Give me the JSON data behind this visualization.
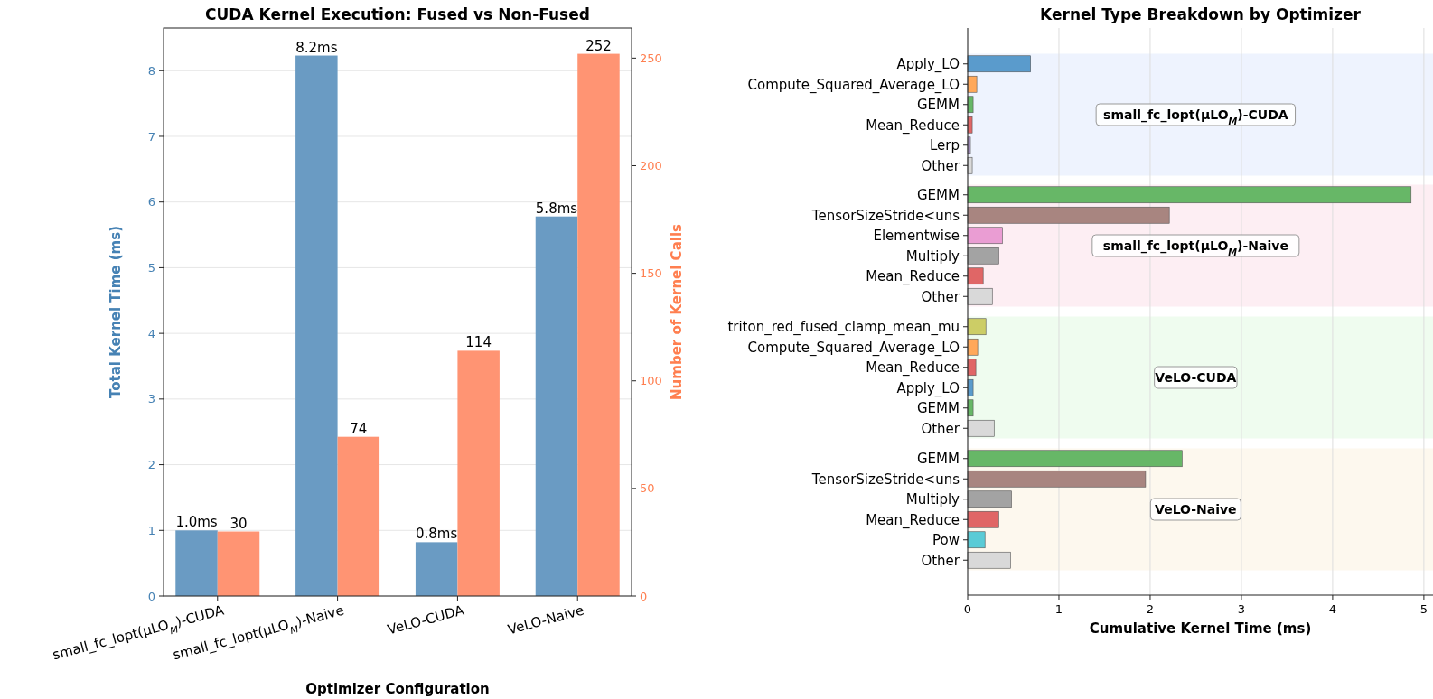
{
  "chart_data": [
    {
      "type": "bar",
      "title": "CUDA Kernel Execution: Fused vs Non-Fused",
      "xlabel": "Optimizer Configuration",
      "ylabel": "Total Kernel Time (ms)",
      "y2label": "Number of Kernel Calls",
      "categories": [
        "small_fc_lopt(μLO$_{M}$)-CUDA",
        "small_fc_lopt(μLO$_{M}$)-Naive",
        "VeLO-CUDA",
        "VeLO-Naive"
      ],
      "series": [
        {
          "color": "#6a9bc3",
          "values": [
            1.0,
            8.23,
            0.82,
            5.78
          ],
          "value_labels": [
            "1.0ms",
            "8.2ms",
            "0.8ms",
            "5.8ms"
          ]
        },
        {
          "color": "#ff9473",
          "axis": "y2",
          "values": [
            30,
            74,
            114,
            252
          ],
          "value_labels": [
            "30",
            "74",
            "114",
            "252"
          ]
        }
      ],
      "ylim": [
        0,
        8.65
      ],
      "yticks": [
        0,
        1,
        2,
        3,
        4,
        5,
        6,
        7,
        8
      ],
      "y2lim": [
        0,
        264
      ],
      "y2ticks": [
        0,
        50,
        100,
        150,
        200,
        250
      ],
      "grid": "y"
    },
    {
      "type": "bar",
      "orientation": "horizontal",
      "title": "Kernel Type Breakdown by Optimizer",
      "categories": [
        "Apply_LO",
        "Compute_Squared_Average_LO",
        "GEMM",
        "Mean_Reduce",
        "Lerp",
        "Other"
      ],
      "values": [
        0.69,
        0.1,
        0.06,
        0.05,
        0.03,
        0.05
      ],
      "colors": [
        "#5a9bcc",
        "#ffa85a",
        "#67b767",
        "#e06666",
        "#b79ed6",
        "#d9d9d9"
      ],
      "bands": [
        {
          "axis": "y",
          "from": "Apply_LO",
          "to": "Other",
          "label": "small_fc_lopt(μLO$_{M}$)-CUDA",
          "color": "#eef3fe"
        }
      ],
      "xlim": [
        0,
        5.1
      ],
      "xticks": [
        0,
        1,
        2,
        3,
        4,
        5
      ],
      "grid": "x",
      "tick_labels": "y"
    },
    {
      "type": "bar",
      "orientation": "horizontal",
      "categories": [
        "GEMM",
        "TensorSizeStride<uns",
        "Elementwise",
        "Multiply",
        "Mean_Reduce",
        "Other"
      ],
      "values": [
        4.86,
        2.21,
        0.38,
        0.34,
        0.17,
        0.27
      ],
      "colors": [
        "#67b767",
        "#a88580",
        "#ea9dd3",
        "#a3a3a3",
        "#e06666",
        "#d9d9d9"
      ],
      "bands": [
        {
          "axis": "y",
          "from": "GEMM",
          "to": "Other",
          "label": "small_fc_lopt(μLO$_{M}$)-Naive",
          "color": "#fdeef3"
        }
      ],
      "xlim": [
        0,
        5.1
      ],
      "xticks": [
        0,
        1,
        2,
        3,
        4,
        5
      ],
      "grid": "x",
      "tick_labels": "y"
    },
    {
      "type": "bar",
      "orientation": "horizontal",
      "categories": [
        "triton_red_fused_clamp_mean_mu",
        "Compute_Squared_Average_LO",
        "Mean_Reduce",
        "Apply_LO",
        "GEMM",
        "Other"
      ],
      "values": [
        0.2,
        0.11,
        0.09,
        0.06,
        0.06,
        0.29
      ],
      "colors": [
        "#cccd66",
        "#ffa85a",
        "#e06666",
        "#5a9bcc",
        "#67b767",
        "#d9d9d9"
      ],
      "bands": [
        {
          "axis": "y",
          "from": "triton_red_fused_clamp_mean_mu",
          "to": "Other",
          "label": "VeLO-CUDA",
          "color": "#effcef"
        }
      ],
      "xlim": [
        0,
        5.1
      ],
      "xticks": [
        0,
        1,
        2,
        3,
        4,
        5
      ],
      "grid": "x",
      "tick_labels": "y"
    },
    {
      "type": "bar",
      "orientation": "horizontal",
      "xlabel": "Cumulative Kernel Time (ms)",
      "categories": [
        "GEMM",
        "TensorSizeStride<uns",
        "Multiply",
        "Mean_Reduce",
        "Pow",
        "Other"
      ],
      "values": [
        2.35,
        1.95,
        0.48,
        0.34,
        0.19,
        0.47
      ],
      "colors": [
        "#67b767",
        "#a88580",
        "#a3a3a3",
        "#e06666",
        "#5acbd6",
        "#d9d9d9"
      ],
      "bands": [
        {
          "axis": "y",
          "from": "GEMM",
          "to": "Other",
          "label": "VeLO-Naive",
          "color": "#fdf8ee"
        }
      ],
      "xlim": [
        0,
        5.1
      ],
      "xticks": [
        0,
        1,
        2,
        3,
        4,
        5
      ],
      "grid": "x"
    }
  ]
}
